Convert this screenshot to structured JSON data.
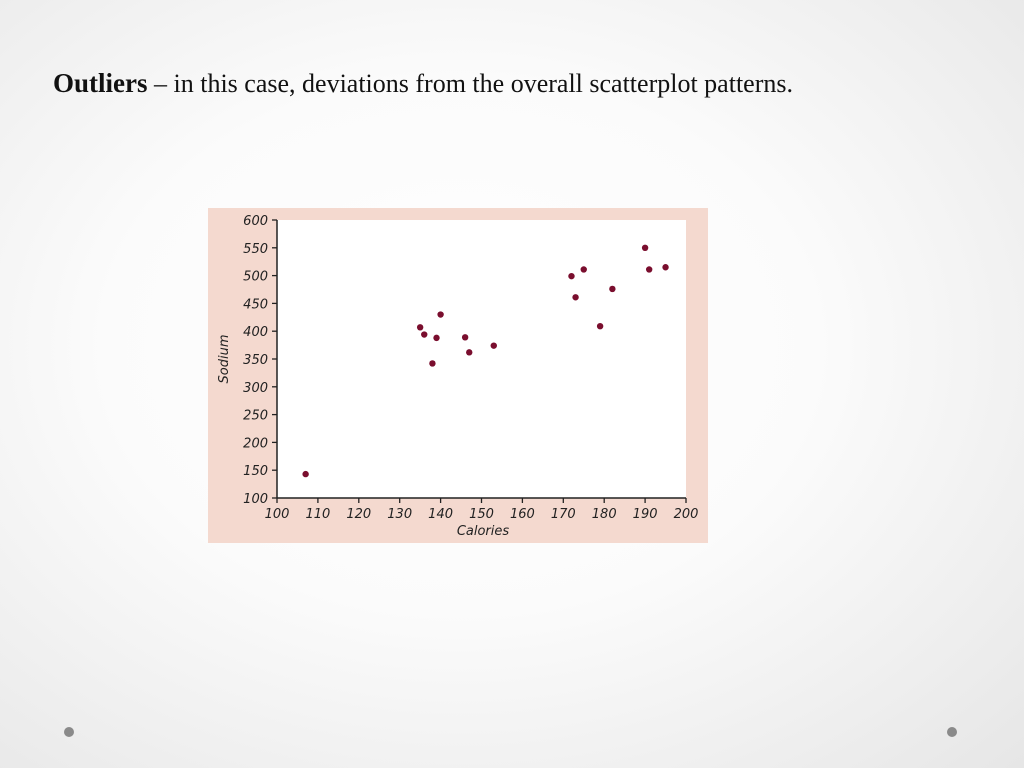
{
  "slide": {
    "title_bold": "Outliers",
    "title_rest": " – in this case, deviations from the overall scatterplot patterns."
  },
  "colors": {
    "point": "#7a0e2e",
    "panel": "#f4d9cf",
    "plot_bg": "#ffffff"
  },
  "chart_data": {
    "type": "scatter",
    "xlabel": "Calories",
    "ylabel": "Sodium",
    "xlim": [
      100,
      200
    ],
    "ylim": [
      100,
      600
    ],
    "xticks": [
      100,
      110,
      120,
      130,
      140,
      150,
      160,
      170,
      180,
      190,
      200
    ],
    "yticks": [
      100,
      150,
      200,
      250,
      300,
      350,
      400,
      450,
      500,
      550,
      600
    ],
    "grid": false,
    "points": [
      {
        "x": 107,
        "y": 143
      },
      {
        "x": 135,
        "y": 407
      },
      {
        "x": 136,
        "y": 394
      },
      {
        "x": 139,
        "y": 388
      },
      {
        "x": 138,
        "y": 342
      },
      {
        "x": 140,
        "y": 430
      },
      {
        "x": 146,
        "y": 389
      },
      {
        "x": 147,
        "y": 362
      },
      {
        "x": 153,
        "y": 374
      },
      {
        "x": 172,
        "y": 499
      },
      {
        "x": 173,
        "y": 461
      },
      {
        "x": 175,
        "y": 511
      },
      {
        "x": 179,
        "y": 409
      },
      {
        "x": 182,
        "y": 476
      },
      {
        "x": 190,
        "y": 550
      },
      {
        "x": 191,
        "y": 511
      },
      {
        "x": 195,
        "y": 515
      }
    ]
  }
}
